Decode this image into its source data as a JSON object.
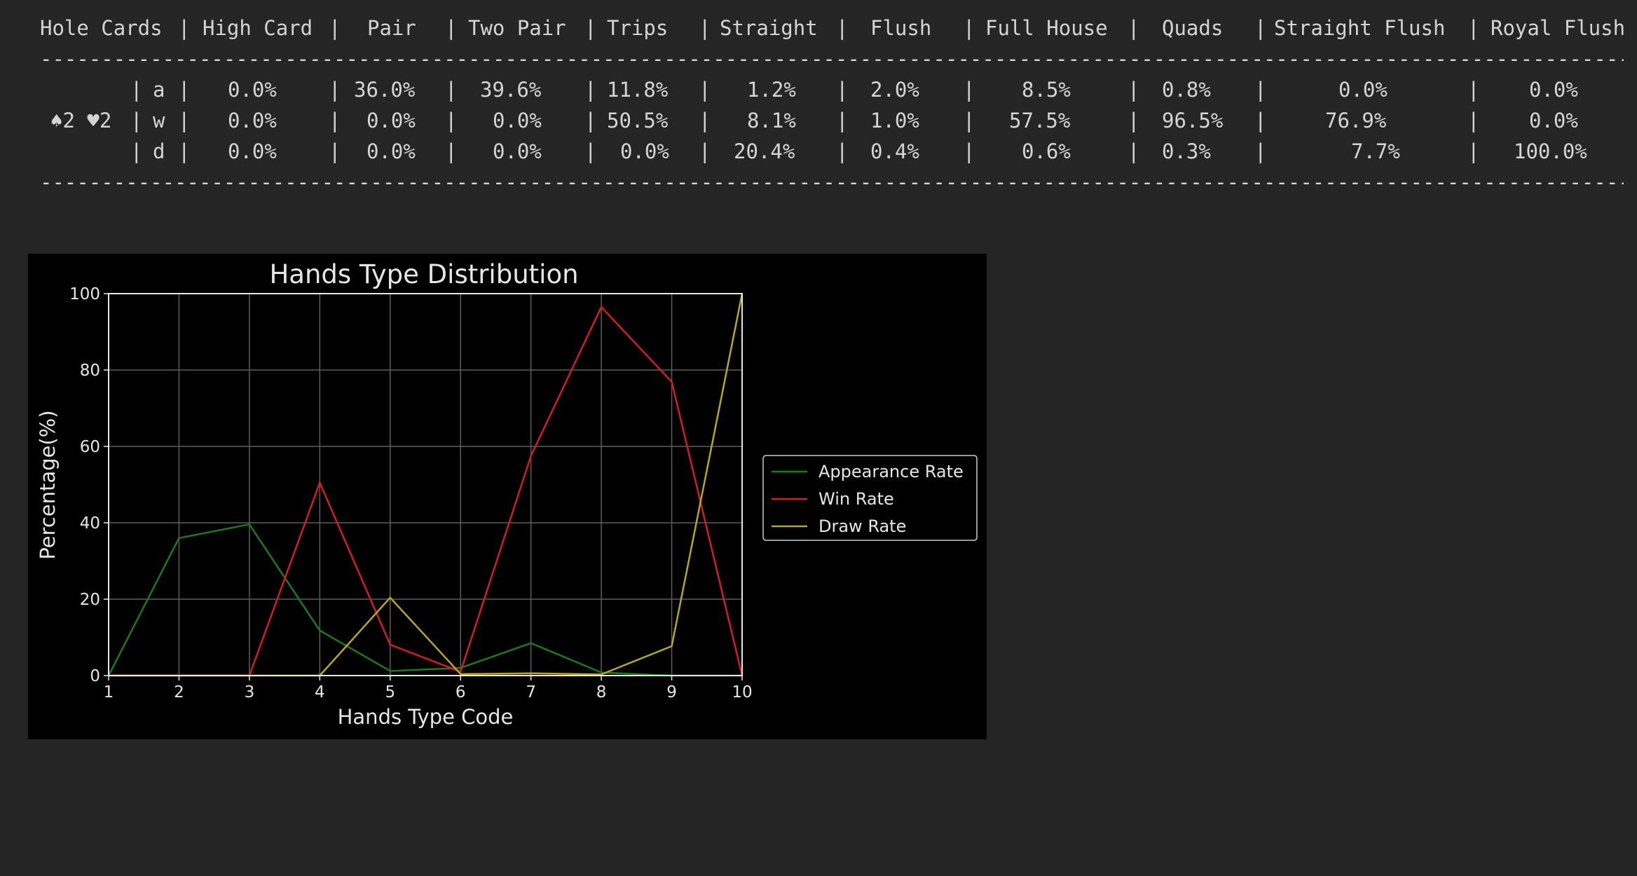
{
  "table": {
    "headers": [
      "Hole Cards",
      "High Card",
      "Pair",
      "Two Pair",
      "Trips",
      "Straight",
      "Flush",
      "Full House",
      "Quads",
      "Straight Flush",
      "Royal Flush"
    ],
    "separator": "-",
    "hole_cards": "♠2 ♥2",
    "rows": [
      {
        "label": "a",
        "values": [
          "0.0%",
          "36.0%",
          "39.6%",
          "11.8%",
          "1.2%",
          "2.0%",
          "8.5%",
          "0.8%",
          "0.0%",
          "0.0%"
        ]
      },
      {
        "label": "w",
        "values": [
          "0.0%",
          "0.0%",
          "0.0%",
          "50.5%",
          "8.1%",
          "1.0%",
          "57.5%",
          "96.5%",
          "76.9%",
          "0.0%"
        ]
      },
      {
        "label": "d",
        "values": [
          "0.0%",
          "0.0%",
          "0.0%",
          "0.0%",
          "20.4%",
          "0.4%",
          "0.6%",
          "0.3%",
          "7.7%",
          "100.0%"
        ]
      }
    ]
  },
  "chart_data": {
    "type": "line",
    "title": "Hands Type Distribution",
    "xlabel": "Hands Type Code",
    "ylabel": "Percentage(%)",
    "x": [
      1,
      2,
      3,
      4,
      5,
      6,
      7,
      8,
      9,
      10
    ],
    "xlim": [
      1,
      10
    ],
    "ylim": [
      0,
      100
    ],
    "x_ticks": [
      1,
      2,
      3,
      4,
      5,
      6,
      7,
      8,
      9,
      10
    ],
    "y_ticks": [
      0,
      20,
      40,
      60,
      80,
      100
    ],
    "grid": true,
    "legend_position": "right",
    "background": "#000000",
    "series": [
      {
        "name": "Appearance Rate",
        "color": "#1c7a1c",
        "values": [
          0.0,
          36.0,
          39.6,
          11.8,
          1.2,
          2.0,
          8.5,
          0.8,
          0.0,
          0.0
        ]
      },
      {
        "name": "Win Rate",
        "color": "#d41c24",
        "values": [
          0.0,
          0.0,
          0.0,
          50.5,
          8.1,
          1.0,
          57.5,
          96.5,
          76.9,
          0.0
        ]
      },
      {
        "name": "Draw Rate",
        "color": "#b8a628",
        "values": [
          0.0,
          0.0,
          0.0,
          0.0,
          20.4,
          0.4,
          0.6,
          0.3,
          7.7,
          100.0
        ]
      }
    ]
  }
}
